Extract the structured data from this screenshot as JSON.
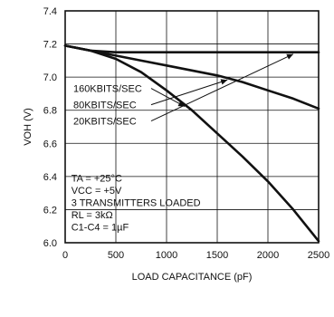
{
  "chart_data": {
    "type": "line",
    "xlabel": "LOAD CAPACITANCE (pF)",
    "ylabel": "VOH (V)",
    "xlim": [
      0,
      2500
    ],
    "ylim": [
      6.0,
      7.4
    ],
    "x_ticks": [
      "0",
      "500",
      "1000",
      "1500",
      "2000",
      "2500"
    ],
    "y_ticks": [
      "6.0",
      "6.2",
      "6.4",
      "6.6",
      "6.8",
      "7.0",
      "7.2",
      "7.4"
    ],
    "grid": true,
    "series": [
      {
        "name": "20KBITS/SEC",
        "x": [
          0,
          250,
          500,
          1000,
          1500,
          2000,
          2500
        ],
        "y": [
          7.19,
          7.16,
          7.15,
          7.15,
          7.15,
          7.15,
          7.15
        ]
      },
      {
        "name": "80KBITS/SEC",
        "x": [
          0,
          250,
          500,
          750,
          1000,
          1250,
          1500,
          1750,
          2000,
          2250,
          2500
        ],
        "y": [
          7.19,
          7.16,
          7.13,
          7.1,
          7.07,
          7.04,
          7.01,
          6.97,
          6.92,
          6.87,
          6.81
        ]
      },
      {
        "name": "160KBITS/SEC",
        "x": [
          0,
          250,
          500,
          750,
          1000,
          1250,
          1500,
          1750,
          2000,
          2250,
          2500
        ],
        "y": [
          7.19,
          7.16,
          7.11,
          7.03,
          6.92,
          6.8,
          6.66,
          6.52,
          6.37,
          6.2,
          6.01
        ]
      }
    ],
    "annotations": [
      "TA = +25°C",
      "VCC = +5V",
      "3 TRANSMITTERS LOADED",
      "RL = 3kΩ",
      "C1-C4 = 1µF"
    ]
  }
}
